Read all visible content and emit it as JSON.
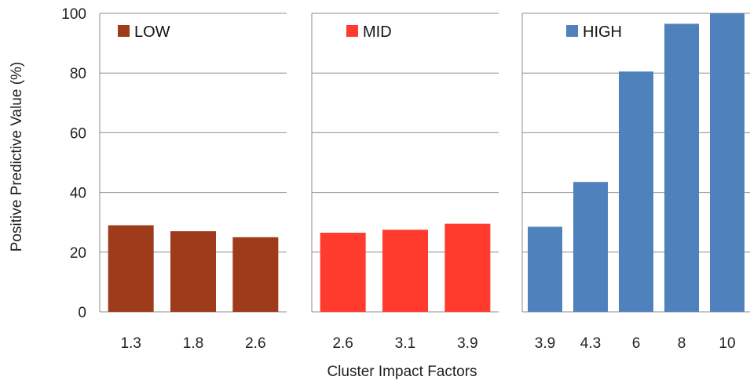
{
  "chart_data": {
    "type": "bar",
    "xlabel": "Cluster Impact Factors",
    "ylabel": "Positive Predictive Value (%)",
    "ylim": [
      0,
      100
    ],
    "yticks": [
      "0",
      "20",
      "40",
      "60",
      "80",
      "100"
    ],
    "grid": true,
    "panels": [
      {
        "name": "LOW",
        "color": "#9E3B1B",
        "categories": [
          "1.3",
          "1.8",
          "2.6"
        ],
        "values": [
          29,
          27,
          25
        ]
      },
      {
        "name": "MID",
        "color": "#FF3B2E",
        "categories": [
          "2.6",
          "3.1",
          "3.9"
        ],
        "values": [
          26.5,
          27.5,
          29.5
        ]
      },
      {
        "name": "HIGH",
        "color": "#4F81BD",
        "categories": [
          "3.9",
          "4.3",
          "6",
          "8",
          "10"
        ],
        "values": [
          28.5,
          43.5,
          80.5,
          96.5,
          100
        ]
      }
    ]
  }
}
